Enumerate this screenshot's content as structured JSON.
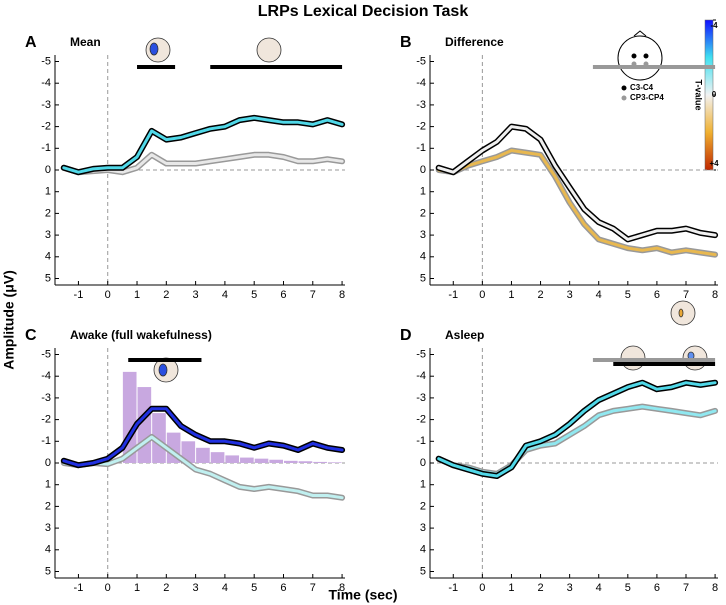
{
  "figure": {
    "title": "LRPs Lexical Decision Task",
    "x_label": "Time (sec)",
    "y_label": "Amplitude (μV)",
    "legend": [
      {
        "name": "C3-C4",
        "color": "#000000"
      },
      {
        "name": "CP3-CP4",
        "color": "#999999"
      }
    ],
    "colorbar": {
      "label": "T-value",
      "lim": [
        -4,
        4
      ],
      "ticks": [
        -4,
        0,
        {
          "value": 4,
          "label": "+4"
        }
      ],
      "colors": [
        "#1010ff",
        "#40e0f0",
        "#f2f2f2",
        "#f0b030",
        "#c02800"
      ]
    }
  },
  "chart_data": [
    {
      "type": "line",
      "letter": "A",
      "title": "Mean",
      "y_inverted": true,
      "x": [
        -1.5,
        -1,
        -0.5,
        0,
        0.5,
        1,
        1.5,
        2,
        2.5,
        3,
        3.5,
        4,
        4.5,
        5,
        5.5,
        6,
        6.5,
        7,
        7.5,
        8
      ],
      "xlim": [
        -1.8,
        8.1
      ],
      "xticks": [
        -1,
        0,
        1,
        2,
        3,
        4,
        5,
        6,
        7,
        8
      ],
      "ylim": [
        -5.3,
        5.3
      ],
      "yticks": [
        -5,
        -4,
        -3,
        -2,
        -1,
        0,
        1,
        2,
        3,
        4,
        5
      ],
      "series": [
        {
          "color": "#50d8e8",
          "outline": "#000000",
          "values": [
            -0.1,
            0.1,
            -0.05,
            -0.1,
            -0.1,
            -0.6,
            -1.8,
            -1.4,
            -1.5,
            -1.7,
            -1.9,
            -2.0,
            -2.3,
            -2.4,
            -2.3,
            -2.2,
            -2.2,
            -2.1,
            -2.3,
            -2.1
          ]
        },
        {
          "color": "#e8e8e8",
          "outline": "#999999",
          "values": [
            -0.1,
            0.1,
            0.05,
            0,
            0.1,
            -0.1,
            -0.7,
            -0.3,
            -0.3,
            -0.3,
            -0.4,
            -0.5,
            -0.6,
            -0.7,
            -0.7,
            -0.6,
            -0.4,
            -0.4,
            -0.5,
            -0.4
          ]
        }
      ],
      "sig_bars": [
        {
          "color": "#000000",
          "x": [
            1,
            2.3
          ]
        },
        {
          "color": "#000000",
          "x": [
            3.5,
            8
          ]
        }
      ]
    },
    {
      "type": "line",
      "letter": "B",
      "title": "Difference",
      "y_inverted": true,
      "x": [
        -1.5,
        -1,
        -0.5,
        0,
        0.5,
        1,
        1.5,
        2,
        2.5,
        3,
        3.5,
        4,
        4.5,
        5,
        5.5,
        6,
        6.5,
        7,
        7.5,
        8
      ],
      "xlim": [
        -1.8,
        8.1
      ],
      "xticks": [
        -1,
        0,
        1,
        2,
        3,
        4,
        5,
        6,
        7,
        8
      ],
      "ylim": [
        -5.3,
        5.3
      ],
      "yticks": [
        -5,
        -4,
        -3,
        -2,
        -1,
        0,
        1,
        2,
        3,
        4,
        5
      ],
      "series": [
        {
          "color": "#f0f0f0",
          "outline": "#000000",
          "values": [
            -0.1,
            0.1,
            -0.4,
            -0.9,
            -1.3,
            -2.0,
            -1.9,
            -1.4,
            -0.2,
            0.8,
            1.8,
            2.4,
            2.7,
            3.2,
            3.0,
            2.8,
            2.8,
            2.7,
            2.9,
            3.0
          ]
        },
        {
          "color": "#e8b850",
          "outline": "#999999",
          "values": [
            0,
            0.1,
            -0.2,
            -0.4,
            -0.6,
            -0.9,
            -0.8,
            -0.7,
            0.3,
            1.5,
            2.5,
            3.2,
            3.4,
            3.6,
            3.7,
            3.6,
            3.8,
            3.7,
            3.8,
            3.9
          ]
        }
      ],
      "sig_bars": [
        {
          "color": "#999999",
          "x": [
            3.8,
            8
          ]
        }
      ]
    },
    {
      "type": "line",
      "letter": "C",
      "title": "Awake (full wakefulness)",
      "y_inverted": true,
      "x": [
        -1.5,
        -1,
        -0.5,
        0,
        0.5,
        1,
        1.5,
        2,
        2.5,
        3,
        3.5,
        4,
        4.5,
        5,
        5.5,
        6,
        6.5,
        7,
        7.5,
        8
      ],
      "xlim": [
        -1.8,
        8.1
      ],
      "xticks": [
        -1,
        0,
        1,
        2,
        3,
        4,
        5,
        6,
        7,
        8
      ],
      "ylim": [
        -5.3,
        5.3
      ],
      "yticks": [
        -5,
        -4,
        -3,
        -2,
        -1,
        0,
        1,
        2,
        3,
        4,
        5
      ],
      "histogram": {
        "color": "#c8a8e0",
        "bins": [
          0.5,
          1,
          1.5,
          2,
          2.5,
          3,
          3.5,
          4,
          4.5,
          5,
          5.5,
          6,
          6.5,
          7,
          7.5,
          8
        ],
        "values": [
          -4.2,
          -3.5,
          -2.3,
          -1.4,
          -1.0,
          -0.7,
          -0.5,
          -0.35,
          -0.25,
          -0.2,
          -0.15,
          -0.1,
          -0.08,
          -0.05,
          -0.03
        ]
      },
      "series": [
        {
          "color": "#2030e0",
          "outline": "#000000",
          "values": [
            -0.1,
            0.1,
            0,
            -0.2,
            -0.7,
            -1.8,
            -2.5,
            -2.5,
            -1.7,
            -1.3,
            -1.0,
            -1.0,
            -0.9,
            -0.7,
            -0.9,
            -0.8,
            -0.6,
            -0.9,
            -0.7,
            -0.6
          ]
        },
        {
          "color": "#c0f0f0",
          "outline": "#999999",
          "values": [
            0,
            0.1,
            0,
            0.05,
            -0.2,
            -0.7,
            -1.2,
            -0.7,
            -0.2,
            0.3,
            0.5,
            0.8,
            1.1,
            1.2,
            1.1,
            1.2,
            1.3,
            1.5,
            1.5,
            1.6
          ]
        }
      ],
      "sig_bars": [
        {
          "color": "#000000",
          "x": [
            0.7,
            3.2
          ]
        }
      ]
    },
    {
      "type": "line",
      "letter": "D",
      "title": "Asleep",
      "y_inverted": true,
      "x": [
        -1.5,
        -1,
        -0.5,
        0,
        0.5,
        1,
        1.5,
        2,
        2.5,
        3,
        3.5,
        4,
        4.5,
        5,
        5.5,
        6,
        6.5,
        7,
        7.5,
        8
      ],
      "xlim": [
        -1.8,
        8.1
      ],
      "xticks": [
        -1,
        0,
        1,
        2,
        3,
        4,
        5,
        6,
        7,
        8
      ],
      "ylim": [
        -5.3,
        5.3
      ],
      "yticks": [
        -5,
        -4,
        -3,
        -2,
        -1,
        0,
        1,
        2,
        3,
        4,
        5
      ],
      "series": [
        {
          "color": "#50d8e8",
          "outline": "#000000",
          "values": [
            -0.2,
            0.1,
            0.3,
            0.5,
            0.6,
            0.2,
            -0.8,
            -1.0,
            -1.3,
            -1.8,
            -2.4,
            -2.9,
            -3.2,
            -3.5,
            -3.7,
            -3.4,
            -3.5,
            -3.7,
            -3.6,
            -3.7
          ]
        },
        {
          "color": "#90e8f0",
          "outline": "#999999",
          "values": [
            -0.2,
            0.1,
            0.2,
            0.4,
            0.5,
            0.1,
            -0.6,
            -0.8,
            -0.9,
            -1.3,
            -1.7,
            -2.2,
            -2.4,
            -2.5,
            -2.6,
            -2.5,
            -2.4,
            -2.3,
            -2.2,
            -2.4
          ]
        }
      ],
      "sig_bars": [
        {
          "color": "#999999",
          "x": [
            3.8,
            8
          ]
        },
        {
          "color": "#000000",
          "x": [
            4.5,
            8
          ]
        }
      ]
    }
  ]
}
